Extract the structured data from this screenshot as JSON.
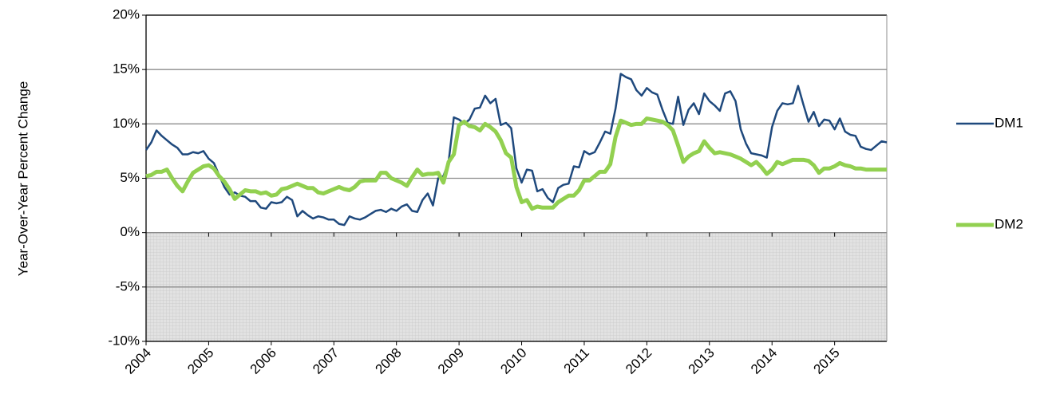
{
  "chart_data": {
    "type": "line",
    "y_label": "Year-Over-Year Percent  Change",
    "categories": [
      "2004",
      null,
      null,
      null,
      null,
      null,
      null,
      null,
      null,
      null,
      null,
      null,
      "2005",
      null,
      null,
      null,
      null,
      null,
      null,
      null,
      null,
      null,
      null,
      null,
      "2006",
      null,
      null,
      null,
      null,
      null,
      null,
      null,
      null,
      null,
      null,
      null,
      "2007",
      null,
      null,
      null,
      null,
      null,
      null,
      null,
      null,
      null,
      null,
      null,
      "2008",
      null,
      null,
      null,
      null,
      null,
      null,
      null,
      null,
      null,
      null,
      null,
      "2009",
      null,
      null,
      null,
      null,
      null,
      null,
      null,
      null,
      null,
      null,
      null,
      "2010",
      null,
      null,
      null,
      null,
      null,
      null,
      null,
      null,
      null,
      null,
      null,
      "2011",
      null,
      null,
      null,
      null,
      null,
      null,
      null,
      null,
      null,
      null,
      null,
      "2012",
      null,
      null,
      null,
      null,
      null,
      null,
      null,
      null,
      null,
      null,
      null,
      "2013",
      null,
      null,
      null,
      null,
      null,
      null,
      null,
      null,
      null,
      null,
      null,
      "2014",
      null,
      null,
      null,
      null,
      null,
      null,
      null,
      null,
      null,
      null,
      null,
      "2015",
      null,
      null,
      null,
      null,
      null,
      null,
      null,
      null,
      null,
      null
    ],
    "series": [
      {
        "name": "DM1",
        "color": "#1f497d",
        "line_width": 2.5,
        "values": [
          7.6,
          8.3,
          9.4,
          8.9,
          8.5,
          8.1,
          7.8,
          7.2,
          7.2,
          7.4,
          7.3,
          7.5,
          6.8,
          6.4,
          5.3,
          4.2,
          3.5,
          3.7,
          3.4,
          3.3,
          2.9,
          2.9,
          2.3,
          2.2,
          2.8,
          2.7,
          2.8,
          3.3,
          3.0,
          1.5,
          2.0,
          1.6,
          1.3,
          1.5,
          1.4,
          1.2,
          1.2,
          0.8,
          0.7,
          1.5,
          1.3,
          1.2,
          1.4,
          1.7,
          2.0,
          2.1,
          1.9,
          2.2,
          2.0,
          2.4,
          2.6,
          2.0,
          1.9,
          3.0,
          3.6,
          2.5,
          5.0,
          5.2,
          6.5,
          10.6,
          10.4,
          10.0,
          10.4,
          11.4,
          11.5,
          12.6,
          11.9,
          12.3,
          9.9,
          10.1,
          9.6,
          5.9,
          4.6,
          5.8,
          5.7,
          3.8,
          4.0,
          3.2,
          2.8,
          4.1,
          4.4,
          4.5,
          6.1,
          6.0,
          7.5,
          7.2,
          7.4,
          8.3,
          9.3,
          9.1,
          11.4,
          14.6,
          14.3,
          14.1,
          13.1,
          12.6,
          13.3,
          12.9,
          12.7,
          11.3,
          10.1,
          10.0,
          12.5,
          9.9,
          11.3,
          11.9,
          10.9,
          12.8,
          12.1,
          11.7,
          11.2,
          12.8,
          13.0,
          12.1,
          9.5,
          8.2,
          7.3,
          7.2,
          7.1,
          6.9,
          9.7,
          11.2,
          11.9,
          11.8,
          11.9,
          13.5,
          11.8,
          10.2,
          11.1,
          9.8,
          10.4,
          10.3,
          9.5,
          10.5,
          9.3,
          9.0,
          8.9,
          7.9,
          7.7,
          7.6,
          8.0,
          8.4,
          8.3
        ]
      },
      {
        "name": "DM2",
        "color": "#92d050",
        "line_width": 5,
        "values": [
          5.2,
          5.3,
          5.6,
          5.6,
          5.8,
          5.0,
          4.3,
          3.8,
          4.7,
          5.5,
          5.8,
          6.1,
          6.2,
          5.9,
          5.2,
          4.7,
          4.0,
          3.1,
          3.5,
          3.9,
          3.8,
          3.8,
          3.6,
          3.7,
          3.4,
          3.5,
          4.0,
          4.1,
          4.3,
          4.5,
          4.3,
          4.1,
          4.1,
          3.7,
          3.6,
          3.8,
          4.0,
          4.2,
          4.0,
          3.9,
          4.2,
          4.7,
          4.8,
          4.8,
          4.8,
          5.5,
          5.5,
          5.0,
          4.8,
          4.6,
          4.3,
          5.1,
          5.8,
          5.3,
          5.4,
          5.4,
          5.5,
          4.6,
          6.5,
          7.2,
          9.9,
          10.2,
          9.8,
          9.7,
          9.4,
          10.0,
          9.7,
          9.3,
          8.5,
          7.3,
          6.9,
          4.2,
          2.8,
          3.0,
          2.2,
          2.4,
          2.3,
          2.3,
          2.3,
          2.8,
          3.1,
          3.4,
          3.4,
          3.9,
          4.8,
          4.8,
          5.2,
          5.6,
          5.6,
          6.3,
          8.8,
          10.3,
          10.1,
          9.9,
          10.0,
          10.0,
          10.5,
          10.4,
          10.3,
          10.2,
          9.9,
          9.4,
          8.0,
          6.5,
          7.0,
          7.3,
          7.5,
          8.4,
          7.8,
          7.3,
          7.4,
          7.3,
          7.2,
          7.0,
          6.8,
          6.5,
          6.2,
          6.5,
          6.0,
          5.4,
          5.8,
          6.5,
          6.3,
          6.5,
          6.7,
          6.7,
          6.7,
          6.6,
          6.2,
          5.5,
          5.9,
          5.9,
          6.1,
          6.4,
          6.2,
          6.1,
          5.9,
          5.9,
          5.8,
          5.8,
          5.8,
          5.8,
          5.8
        ]
      }
    ],
    "ylim": [
      -10,
      20
    ],
    "yticks": [
      {
        "value": -10,
        "label": "-10%"
      },
      {
        "value": -5,
        "label": "-5%"
      },
      {
        "value": 0,
        "label": "0%"
      },
      {
        "value": 5,
        "label": "5%"
      },
      {
        "value": 10,
        "label": "10%"
      },
      {
        "value": 15,
        "label": "15%"
      },
      {
        "value": 20,
        "label": "20%"
      }
    ],
    "grid": true,
    "negative_shading": true,
    "legend": "right"
  }
}
